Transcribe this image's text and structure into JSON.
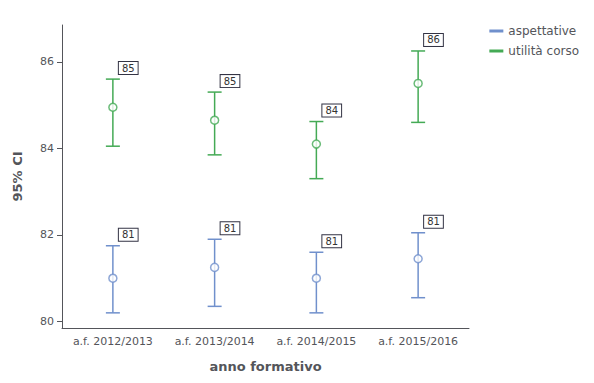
{
  "chart_data": {
    "type": "errorbar",
    "xlabel": "anno formativo",
    "ylabel": "95% CI",
    "categories": [
      "a.f. 2012/2013",
      "a.f. 2013/2014",
      "a.f. 2014/2015",
      "a.f. 2015/2016"
    ],
    "series": [
      {
        "name": "aspettative",
        "color": "#7090cc",
        "marker": "circle",
        "values": [
          81.0,
          81.25,
          81.0,
          81.45
        ],
        "ci_upper": [
          81.75,
          81.9,
          81.6,
          82.05
        ],
        "ci_lower": [
          80.2,
          80.35,
          80.2,
          80.55
        ],
        "value_labels": [
          "81",
          "81",
          "81",
          "81"
        ]
      },
      {
        "name": "utilità corso",
        "color": "#44aa55",
        "marker": "circle",
        "values": [
          84.95,
          84.65,
          84.1,
          85.5
        ],
        "ci_upper": [
          85.6,
          85.3,
          84.62,
          86.25
        ],
        "ci_lower": [
          84.05,
          83.85,
          83.3,
          84.6
        ],
        "value_labels": [
          "85",
          "85",
          "84",
          "86"
        ]
      }
    ],
    "ylim": [
      79.85,
      86.85
    ],
    "yticks": [
      80,
      82,
      84,
      86
    ],
    "grid": false,
    "legend": "right",
    "data_labels": true
  }
}
